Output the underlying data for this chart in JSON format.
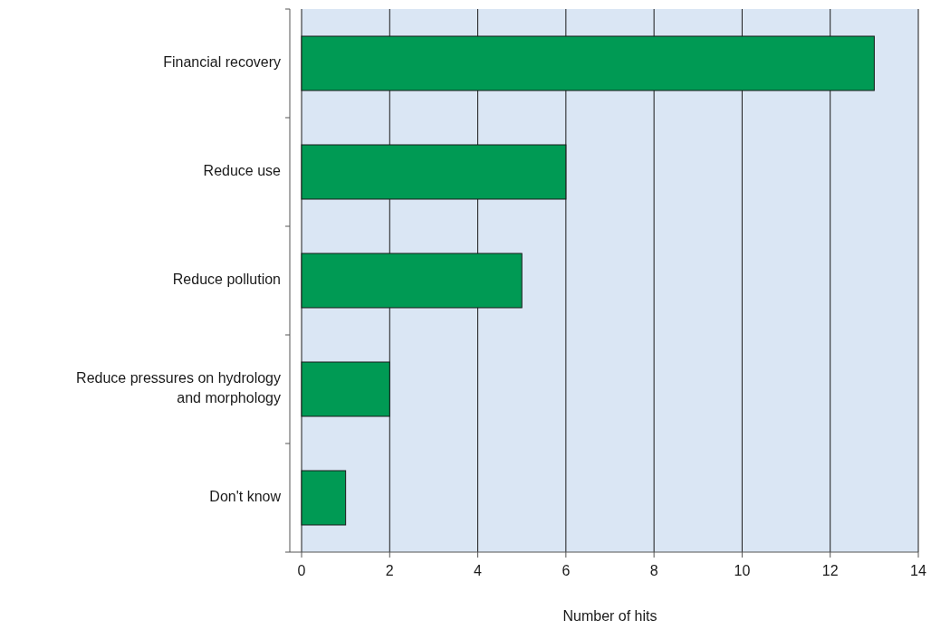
{
  "chart_data": {
    "type": "bar",
    "orientation": "horizontal",
    "xlabel": "Number of hits",
    "categories": [
      "Financial recovery",
      "Reduce use",
      "Reduce pollution",
      "Reduce pressures on hydrology and morphology",
      "Don't know"
    ],
    "values": [
      13,
      6,
      5,
      2,
      1
    ],
    "color": "#009a54",
    "xlim": [
      0,
      14
    ],
    "xticks": [
      0,
      2,
      4,
      6,
      8,
      10,
      12,
      14
    ],
    "grid": "x"
  }
}
